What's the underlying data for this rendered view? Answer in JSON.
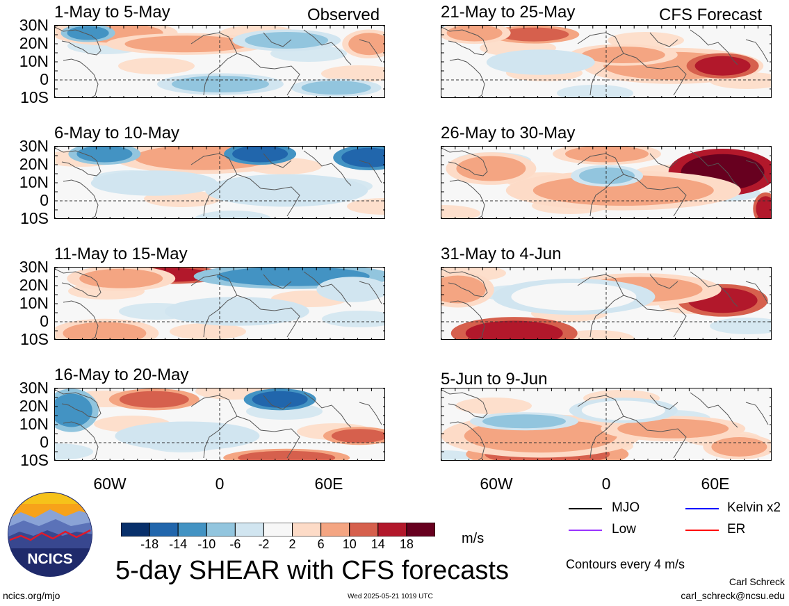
{
  "observed_label": "Observed",
  "forecast_label": "CFS Forecast",
  "panels": [
    {
      "title": "1-May to 5-May"
    },
    {
      "title": "6-May to 10-May"
    },
    {
      "title": "11-May to 15-May"
    },
    {
      "title": "16-May to 20-May"
    },
    {
      "title": "21-May to 25-May"
    },
    {
      "title": "26-May to 30-May"
    },
    {
      "title": "31-May to 4-Jun"
    },
    {
      "title": "5-Jun to 9-Jun"
    }
  ],
  "lat_labels": [
    "30N",
    "20N",
    "10N",
    "0",
    "10S"
  ],
  "lon_labels": [
    "60W",
    "0",
    "60E"
  ],
  "colorbar": {
    "colors": [
      "#08306b",
      "#2166ac",
      "#4393c3",
      "#92c5de",
      "#d1e5f0",
      "#f7f7f7",
      "#fddbc7",
      "#f4a582",
      "#d6604d",
      "#b2182b",
      "#67001f"
    ],
    "labels": [
      "-18",
      "-14",
      "-10",
      "-6",
      "-2",
      "2",
      "6",
      "10",
      "14",
      "18"
    ],
    "unit": "m/s"
  },
  "legend": {
    "items": [
      {
        "label": "MJO",
        "color": "#000000"
      },
      {
        "label": "Kelvin x2",
        "color": "#0000ff"
      },
      {
        "label": "Low",
        "color": "#9933ff"
      },
      {
        "label": "ER",
        "color": "#ff0000"
      }
    ],
    "contours_note": "Contours every 4 m/s"
  },
  "main_title": "5-day SHEAR with CFS forecasts",
  "logo_text": "NCICS",
  "footer": {
    "url": "ncics.org/mjo",
    "timestamp": "Wed 2025-05-21 1019 UTC",
    "author": "Carl Schreck",
    "email": "carl_schreck@ncsu.edu"
  }
}
